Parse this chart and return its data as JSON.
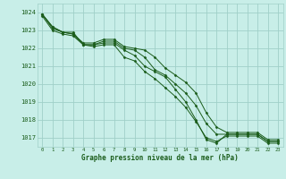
{
  "background_color": "#c8eee8",
  "grid_color": "#a0d0c8",
  "line_color": "#1a5c1a",
  "marker_color": "#1a5c1a",
  "xlabel": "Graphe pression niveau de la mer (hPa)",
  "xlabel_color": "#1a5c1a",
  "xlim": [
    -0.5,
    23.5
  ],
  "ylim": [
    1016.5,
    1024.5
  ],
  "yticks": [
    1017,
    1018,
    1019,
    1020,
    1021,
    1022,
    1023,
    1024
  ],
  "xticks": [
    0,
    1,
    2,
    3,
    4,
    5,
    6,
    7,
    8,
    9,
    10,
    11,
    12,
    13,
    14,
    15,
    16,
    17,
    18,
    19,
    20,
    21,
    22,
    23
  ],
  "series": [
    [
      1023.9,
      1023.1,
      1022.9,
      1022.9,
      1022.2,
      1022.2,
      1022.3,
      1022.3,
      1021.9,
      1021.6,
      1021.0,
      1020.7,
      1020.4,
      1019.7,
      1019.0,
      1018.0,
      1016.9,
      1016.7,
      1017.2,
      1017.2,
      1017.2,
      1017.2,
      1016.8,
      1016.8
    ],
    [
      1023.9,
      1023.2,
      1022.9,
      1022.8,
      1022.2,
      1022.2,
      1022.4,
      1022.4,
      1022.0,
      1021.9,
      1021.5,
      1020.8,
      1020.5,
      1020.0,
      1019.5,
      1018.8,
      1017.8,
      1017.2,
      1017.2,
      1017.2,
      1017.2,
      1017.2,
      1016.8,
      1016.8
    ],
    [
      1023.9,
      1023.2,
      1022.9,
      1022.8,
      1022.3,
      1022.3,
      1022.5,
      1022.5,
      1022.1,
      1022.0,
      1021.9,
      1021.5,
      1020.9,
      1020.5,
      1020.1,
      1019.5,
      1018.4,
      1017.6,
      1017.3,
      1017.3,
      1017.3,
      1017.3,
      1016.9,
      1016.9
    ],
    [
      1023.8,
      1023.0,
      1022.8,
      1022.7,
      1022.2,
      1022.1,
      1022.2,
      1022.2,
      1021.5,
      1021.3,
      1020.7,
      1020.3,
      1019.8,
      1019.3,
      1018.7,
      1017.9,
      1017.0,
      1016.8,
      1017.1,
      1017.1,
      1017.1,
      1017.1,
      1016.7,
      1016.7
    ]
  ]
}
